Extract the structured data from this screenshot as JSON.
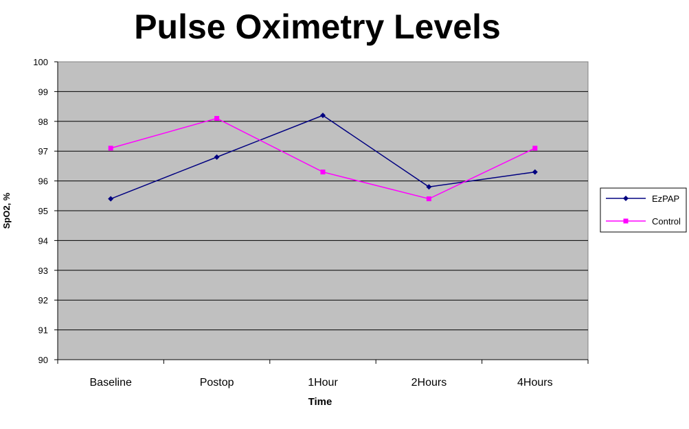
{
  "chart_data": {
    "type": "line",
    "title": "Pulse Oximetry Levels",
    "xlabel": "Time",
    "ylabel": "SpO2, %",
    "categories": [
      "Baseline",
      "Postop",
      "1Hour",
      "2Hours",
      "4Hours"
    ],
    "ylim": [
      90,
      100
    ],
    "yticks": [
      "90",
      "91",
      "92",
      "93",
      "94",
      "95",
      "96",
      "97",
      "98",
      "99",
      "100"
    ],
    "grid": true,
    "legend_position": "right",
    "plot_background": "#c0c0c0",
    "series": [
      {
        "name": "EzPAP",
        "values": [
          95.4,
          96.8,
          98.2,
          95.8,
          96.3
        ],
        "color": "#000080",
        "marker": "diamond"
      },
      {
        "name": "Control",
        "values": [
          97.1,
          98.1,
          96.3,
          95.4,
          97.1
        ],
        "color": "#ff00ff",
        "marker": "square"
      }
    ]
  }
}
